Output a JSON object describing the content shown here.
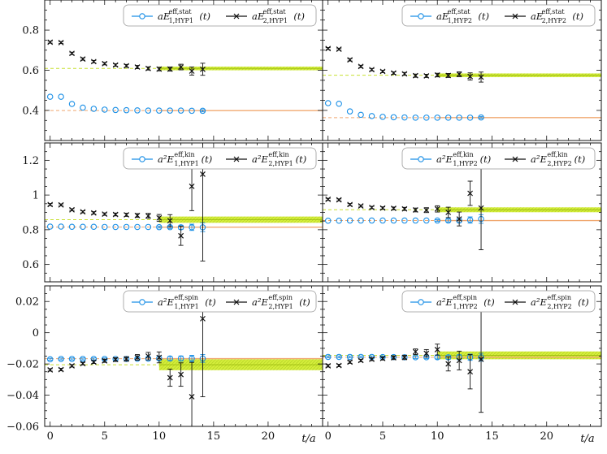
{
  "colors": {
    "series1": "#1a8fe6",
    "series2": "#111111",
    "band2": "#d4ee3a",
    "line1": "#f0a870"
  },
  "chart_data": {
    "type": "scatter",
    "xlabel": "t/a",
    "xlim": [
      -0.5,
      25
    ],
    "xticks": [
      0,
      5,
      10,
      15,
      20
    ],
    "panels": [
      {
        "id": "stat-hyp1",
        "ylim": [
          0.25,
          0.95
        ],
        "yticks": [
          "0.4",
          "0.6",
          "0.8"
        ],
        "ytickvals": [
          0.4,
          0.6,
          0.8
        ],
        "legend": [
          {
            "base": "aE",
            "sup": "eff,stat",
            "sub": "1,HYP1",
            "post": "(t)"
          },
          {
            "base": "aE",
            "sup": "eff,stat",
            "sub": "2,HYP1",
            "post": "(t)"
          }
        ],
        "series": [
          {
            "name": "1,HYP1",
            "t": [
              0,
              1,
              2,
              3,
              4,
              5,
              6,
              7,
              8,
              9,
              10,
              11,
              12,
              13,
              14
            ],
            "values": [
              0.468,
              0.468,
              0.432,
              0.414,
              0.408,
              0.404,
              0.402,
              0.401,
              0.4,
              0.399,
              0.399,
              0.399,
              0.399,
              0.398,
              0.398
            ],
            "errors": [
              0.004,
              0.004,
              0.004,
              0.003,
              0.003,
              0.003,
              0.003,
              0.003,
              0.003,
              0.003,
              0.003,
              0.003,
              0.004,
              0.004,
              0.005
            ]
          },
          {
            "name": "2,HYP1",
            "t": [
              0,
              1,
              2,
              3,
              4,
              5,
              6,
              7,
              8,
              9,
              10,
              11,
              12,
              13,
              14
            ],
            "values": [
              0.74,
              0.738,
              0.684,
              0.656,
              0.643,
              0.633,
              0.626,
              0.622,
              0.616,
              0.609,
              0.606,
              0.606,
              0.616,
              0.596,
              0.605
            ],
            "errors": [
              0.005,
              0.005,
              0.006,
              0.006,
              0.006,
              0.006,
              0.006,
              0.007,
              0.008,
              0.008,
              0.009,
              0.01,
              0.014,
              0.02,
              0.03
            ]
          }
        ],
        "fits": [
          {
            "value": 0.609,
            "err": 0.009,
            "from": 10,
            "kind": "band",
            "series": 2
          },
          {
            "value": 0.399,
            "err": 0.0015,
            "from": 10,
            "kind": "line",
            "series": 1
          }
        ]
      },
      {
        "id": "stat-hyp2",
        "ylim": [
          0.25,
          0.95
        ],
        "yticks": [],
        "ytickvals": [
          0.4,
          0.6,
          0.8
        ],
        "legend": [
          {
            "base": "aE",
            "sup": "eff,stat",
            "sub": "1,HYP2",
            "post": "(t)"
          },
          {
            "base": "aE",
            "sup": "eff,stat",
            "sub": "2,HYP2",
            "post": "(t)"
          }
        ],
        "series": [
          {
            "name": "1,HYP2",
            "t": [
              0,
              1,
              2,
              3,
              4,
              5,
              6,
              7,
              8,
              9,
              10,
              11,
              12,
              13,
              14
            ],
            "values": [
              0.436,
              0.433,
              0.395,
              0.378,
              0.372,
              0.368,
              0.366,
              0.365,
              0.364,
              0.364,
              0.364,
              0.364,
              0.364,
              0.364,
              0.365
            ],
            "errors": [
              0.004,
              0.004,
              0.004,
              0.003,
              0.003,
              0.003,
              0.003,
              0.003,
              0.003,
              0.003,
              0.003,
              0.003,
              0.004,
              0.004,
              0.005
            ]
          },
          {
            "name": "2,HYP2",
            "t": [
              0,
              1,
              2,
              3,
              4,
              5,
              6,
              7,
              8,
              9,
              10,
              11,
              12,
              13,
              14
            ],
            "values": [
              0.708,
              0.705,
              0.652,
              0.619,
              0.603,
              0.594,
              0.586,
              0.582,
              0.573,
              0.572,
              0.576,
              0.574,
              0.58,
              0.569,
              0.566
            ],
            "errors": [
              0.005,
              0.005,
              0.006,
              0.006,
              0.006,
              0.006,
              0.006,
              0.007,
              0.008,
              0.008,
              0.009,
              0.01,
              0.012,
              0.018,
              0.025
            ]
          }
        ],
        "fits": [
          {
            "value": 0.575,
            "err": 0.009,
            "from": 10,
            "kind": "band",
            "series": 2
          },
          {
            "value": 0.364,
            "err": 0.0015,
            "from": 10,
            "kind": "line",
            "series": 1
          }
        ]
      },
      {
        "id": "kin-hyp1",
        "ylim": [
          0.5,
          1.3
        ],
        "yticks": [
          "0.6",
          "0.8",
          "1",
          "1.2"
        ],
        "ytickvals": [
          0.6,
          0.8,
          1.0,
          1.2
        ],
        "legend": [
          {
            "base": "a²E",
            "sup": "eff,kin",
            "sub": "1,HYP1",
            "post": "(t)"
          },
          {
            "base": "a²E",
            "sup": "eff,kin",
            "sub": "2,HYP1",
            "post": "(t)"
          }
        ],
        "series": [
          {
            "name": "1,HYP1",
            "t": [
              0,
              1,
              2,
              3,
              4,
              5,
              6,
              7,
              8,
              9,
              10,
              11,
              12,
              13,
              14
            ],
            "values": [
              0.818,
              0.818,
              0.817,
              0.817,
              0.817,
              0.816,
              0.816,
              0.816,
              0.816,
              0.816,
              0.815,
              0.815,
              0.814,
              0.814,
              0.814
            ],
            "errors": [
              0.003,
              0.003,
              0.003,
              0.003,
              0.003,
              0.003,
              0.003,
              0.003,
              0.004,
              0.004,
              0.005,
              0.008,
              0.012,
              0.018,
              0.025
            ]
          },
          {
            "name": "2,HYP1",
            "t": [
              0,
              1,
              2,
              3,
              4,
              5,
              6,
              7,
              8,
              9,
              10,
              11,
              12,
              13,
              14
            ],
            "values": [
              0.945,
              0.943,
              0.915,
              0.903,
              0.897,
              0.89,
              0.888,
              0.886,
              0.882,
              0.88,
              0.868,
              0.852,
              0.765,
              1.05,
              1.12
            ],
            "errors": [
              0.006,
              0.006,
              0.006,
              0.006,
              0.007,
              0.007,
              0.008,
              0.009,
              0.011,
              0.014,
              0.02,
              0.035,
              0.055,
              0.14,
              0.5
            ]
          }
        ],
        "fits": [
          {
            "value": 0.858,
            "err": 0.018,
            "from": 10,
            "kind": "band",
            "series": 2
          },
          {
            "value": 0.815,
            "err": 0.0015,
            "from": 10,
            "kind": "line",
            "series": 1
          }
        ]
      },
      {
        "id": "kin-hyp2",
        "ylim": [
          0.5,
          1.3
        ],
        "yticks": [],
        "ytickvals": [
          0.6,
          0.8,
          1.0,
          1.2
        ],
        "legend": [
          {
            "base": "a²E",
            "sup": "eff,kin",
            "sub": "1,HYP2",
            "post": "(t)"
          },
          {
            "base": "a²E",
            "sup": "eff,kin",
            "sub": "2,HYP2",
            "post": "(t)"
          }
        ],
        "series": [
          {
            "name": "1,HYP2",
            "t": [
              0,
              1,
              2,
              3,
              4,
              5,
              6,
              7,
              8,
              9,
              10,
              11,
              12,
              13,
              14
            ],
            "values": [
              0.852,
              0.852,
              0.853,
              0.853,
              0.853,
              0.853,
              0.853,
              0.853,
              0.853,
              0.853,
              0.853,
              0.853,
              0.853,
              0.856,
              0.862
            ],
            "errors": [
              0.003,
              0.003,
              0.003,
              0.003,
              0.003,
              0.003,
              0.003,
              0.003,
              0.004,
              0.004,
              0.005,
              0.008,
              0.012,
              0.018,
              0.025
            ]
          },
          {
            "name": "2,HYP2",
            "t": [
              0,
              1,
              2,
              3,
              4,
              5,
              6,
              7,
              8,
              9,
              10,
              11,
              12,
              13,
              14
            ],
            "values": [
              0.975,
              0.972,
              0.945,
              0.937,
              0.928,
              0.925,
              0.923,
              0.92,
              0.914,
              0.913,
              0.92,
              0.9,
              0.862,
              1.01,
              0.925
            ],
            "errors": [
              0.006,
              0.006,
              0.006,
              0.006,
              0.007,
              0.007,
              0.008,
              0.009,
              0.011,
              0.014,
              0.018,
              0.03,
              0.04,
              0.07,
              0.24
            ]
          }
        ],
        "fits": [
          {
            "value": 0.915,
            "err": 0.014,
            "from": 10,
            "kind": "band",
            "series": 2
          },
          {
            "value": 0.853,
            "err": 0.0015,
            "from": 10,
            "kind": "line",
            "series": 1
          }
        ]
      },
      {
        "id": "spin-hyp1",
        "ylim": [
          -0.06,
          0.03
        ],
        "yticks": [
          "−0.06",
          "−0.04",
          "−0.02",
          "0",
          "0.02"
        ],
        "ytickvals": [
          -0.06,
          -0.04,
          -0.02,
          0,
          0.02
        ],
        "legend": [
          {
            "base": "a²E",
            "sup": "eff,spin",
            "sub": "1,HYP1",
            "post": "(t)"
          },
          {
            "base": "a²E",
            "sup": "eff,spin",
            "sub": "2,HYP1",
            "post": "(t)"
          }
        ],
        "series": [
          {
            "name": "1,HYP1",
            "t": [
              0,
              1,
              2,
              3,
              4,
              5,
              6,
              7,
              8,
              9,
              10,
              11,
              12,
              13,
              14
            ],
            "values": [
              -0.017,
              -0.0168,
              -0.0168,
              -0.0168,
              -0.0168,
              -0.0168,
              -0.0168,
              -0.0168,
              -0.0167,
              -0.0166,
              -0.0165,
              -0.0165,
              -0.0165,
              -0.0165,
              -0.0165
            ],
            "errors": [
              0.0006,
              0.0006,
              0.0006,
              0.0006,
              0.0006,
              0.0006,
              0.0006,
              0.0007,
              0.0008,
              0.0009,
              0.0011,
              0.0013,
              0.0016,
              0.002,
              0.0025
            ]
          },
          {
            "name": "2,HYP1",
            "t": [
              0,
              1,
              2,
              3,
              4,
              5,
              6,
              7,
              8,
              9,
              10,
              11,
              12,
              13,
              14
            ],
            "values": [
              -0.0238,
              -0.0236,
              -0.0212,
              -0.0198,
              -0.0188,
              -0.018,
              -0.0172,
              -0.0168,
              -0.0158,
              -0.015,
              -0.0158,
              -0.0288,
              -0.0268,
              -0.041,
              0.009
            ],
            "errors": [
              0.0008,
              0.0008,
              0.0008,
              0.0008,
              0.0009,
              0.001,
              0.0012,
              0.0014,
              0.0018,
              0.0024,
              0.0035,
              0.0055,
              0.0075,
              0.022,
              0.05
            ]
          }
        ],
        "fits": [
          {
            "value": -0.0205,
            "err": 0.0035,
            "from": 10,
            "kind": "band",
            "series": 2
          },
          {
            "value": -0.0166,
            "err": 0.0002,
            "from": 10,
            "kind": "line",
            "series": 1
          }
        ]
      },
      {
        "id": "spin-hyp2",
        "ylim": [
          -0.06,
          0.03
        ],
        "yticks": [],
        "ytickvals": [
          -0.06,
          -0.04,
          -0.02,
          0,
          0.02
        ],
        "legend": [
          {
            "base": "a²E",
            "sup": "eff,spin",
            "sub": "1,HYP2",
            "post": "(t)"
          },
          {
            "base": "a²E",
            "sup": "eff,spin",
            "sub": "2,HYP2",
            "post": "(t)"
          }
        ],
        "series": [
          {
            "name": "1,HYP2",
            "t": [
              0,
              1,
              2,
              3,
              4,
              5,
              6,
              7,
              8,
              9,
              10,
              11,
              12,
              13,
              14
            ],
            "values": [
              -0.0155,
              -0.0155,
              -0.0155,
              -0.0155,
              -0.0155,
              -0.0156,
              -0.0156,
              -0.0157,
              -0.0157,
              -0.0157,
              -0.0157,
              -0.0157,
              -0.0157,
              -0.0157,
              -0.0157
            ],
            "errors": [
              0.0006,
              0.0006,
              0.0006,
              0.0006,
              0.0006,
              0.0006,
              0.0006,
              0.0007,
              0.0008,
              0.0009,
              0.0011,
              0.0013,
              0.0016,
              0.002,
              0.0025
            ]
          },
          {
            "name": "2,HYP2",
            "t": [
              0,
              1,
              2,
              3,
              4,
              5,
              6,
              7,
              8,
              9,
              10,
              11,
              12,
              13,
              14
            ],
            "values": [
              -0.0212,
              -0.021,
              -0.0188,
              -0.0178,
              -0.017,
              -0.0165,
              -0.016,
              -0.0158,
              -0.0122,
              -0.0132,
              -0.0108,
              -0.02,
              -0.0178,
              -0.025,
              -0.017
            ],
            "errors": [
              0.0008,
              0.0008,
              0.0008,
              0.0008,
              0.0009,
              0.001,
              0.0012,
              0.0014,
              0.0018,
              0.0024,
              0.0035,
              0.0045,
              0.006,
              0.011,
              0.034
            ]
          }
        ],
        "fits": [
          {
            "value": -0.0145,
            "err": 0.0025,
            "from": 10,
            "kind": "band",
            "series": 2
          },
          {
            "value": -0.0157,
            "err": 0.0002,
            "from": 10,
            "kind": "line",
            "series": 1
          }
        ]
      }
    ]
  }
}
